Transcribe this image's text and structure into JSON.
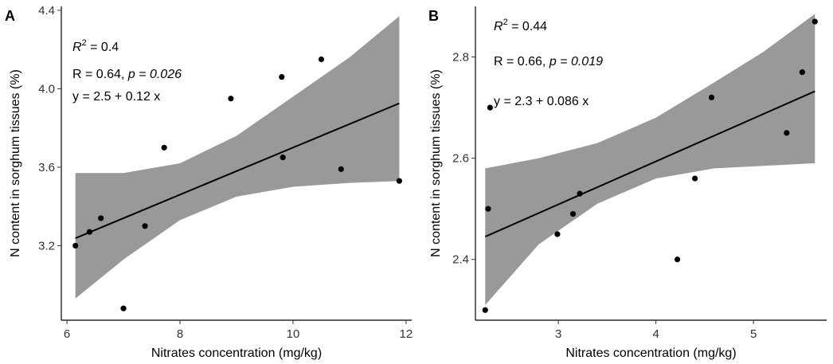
{
  "chart_data": [
    {
      "type": "scatter",
      "panel": "A",
      "xlabel": "Nitrates concentration (mg/kg)",
      "ylabel": "N content in sorghum tissues (%)",
      "xlim": [
        5.9,
        12.1
      ],
      "ylim": [
        2.82,
        4.42
      ],
      "x_ticks": [
        6,
        8,
        10,
        12
      ],
      "y_ticks": [
        3.2,
        3.6,
        4.0,
        4.4
      ],
      "stats": {
        "r2_label": "R",
        "r2_value": "= 0.4",
        "r": "R = 0.64, ",
        "p": "p = 0.026",
        "eq": "y = 2.5 + 0.12 x"
      },
      "points": [
        {
          "x": 6.15,
          "y": 3.2
        },
        {
          "x": 6.4,
          "y": 3.27
        },
        {
          "x": 6.6,
          "y": 3.34
        },
        {
          "x": 7.0,
          "y": 2.88
        },
        {
          "x": 7.38,
          "y": 3.3
        },
        {
          "x": 7.72,
          "y": 3.7
        },
        {
          "x": 8.9,
          "y": 3.95
        },
        {
          "x": 9.8,
          "y": 4.06
        },
        {
          "x": 9.82,
          "y": 3.65
        },
        {
          "x": 10.5,
          "y": 4.15
        },
        {
          "x": 10.85,
          "y": 3.59
        },
        {
          "x": 11.88,
          "y": 3.53
        }
      ],
      "fit": {
        "x_start": 6.15,
        "x_end": 11.88,
        "intercept": 2.5,
        "slope": 0.12
      },
      "confidence_band": {
        "x": [
          6.15,
          7.0,
          8.0,
          9.0,
          10.0,
          11.0,
          11.88
        ],
        "lower": [
          2.93,
          3.13,
          3.33,
          3.45,
          3.5,
          3.52,
          3.53
        ],
        "upper": [
          3.57,
          3.57,
          3.62,
          3.76,
          3.96,
          4.16,
          4.37
        ]
      },
      "colors": {
        "points": "#000000",
        "line": "#000000",
        "band": "#999999"
      }
    },
    {
      "type": "scatter",
      "panel": "B",
      "xlabel": "Nitrates concentration (mg/kg)",
      "ylabel": "N content in sorghum tissues (%)",
      "xlim": [
        2.15,
        5.75
      ],
      "ylim": [
        2.28,
        2.9
      ],
      "x_ticks": [
        3,
        4,
        5
      ],
      "y_ticks": [
        2.4,
        2.6,
        2.8
      ],
      "stats": {
        "r2_label": "R",
        "r2_value": "= 0.44",
        "r": "R = 0.66, ",
        "p": "p = 0.019",
        "eq": "y = 2.3 + 0.086 x"
      },
      "points": [
        {
          "x": 2.25,
          "y": 2.3
        },
        {
          "x": 2.28,
          "y": 2.5
        },
        {
          "x": 2.3,
          "y": 2.7
        },
        {
          "x": 2.99,
          "y": 2.45
        },
        {
          "x": 3.15,
          "y": 2.49
        },
        {
          "x": 3.22,
          "y": 2.53
        },
        {
          "x": 4.22,
          "y": 2.4
        },
        {
          "x": 4.4,
          "y": 2.56
        },
        {
          "x": 4.57,
          "y": 2.72
        },
        {
          "x": 5.34,
          "y": 2.65
        },
        {
          "x": 5.5,
          "y": 2.77
        },
        {
          "x": 5.63,
          "y": 2.87
        }
      ],
      "fit": {
        "x_start": 2.25,
        "x_end": 5.63,
        "x0": 2.25,
        "y0": 2.445,
        "slope": 0.085
      },
      "confidence_band": {
        "x": [
          2.25,
          2.8,
          3.4,
          4.0,
          4.6,
          5.1,
          5.63
        ],
        "lower": [
          2.31,
          2.43,
          2.51,
          2.56,
          2.58,
          2.585,
          2.59
        ],
        "upper": [
          2.58,
          2.6,
          2.63,
          2.68,
          2.75,
          2.81,
          2.885
        ]
      },
      "colors": {
        "points": "#000000",
        "line": "#000000",
        "band": "#999999"
      }
    }
  ]
}
